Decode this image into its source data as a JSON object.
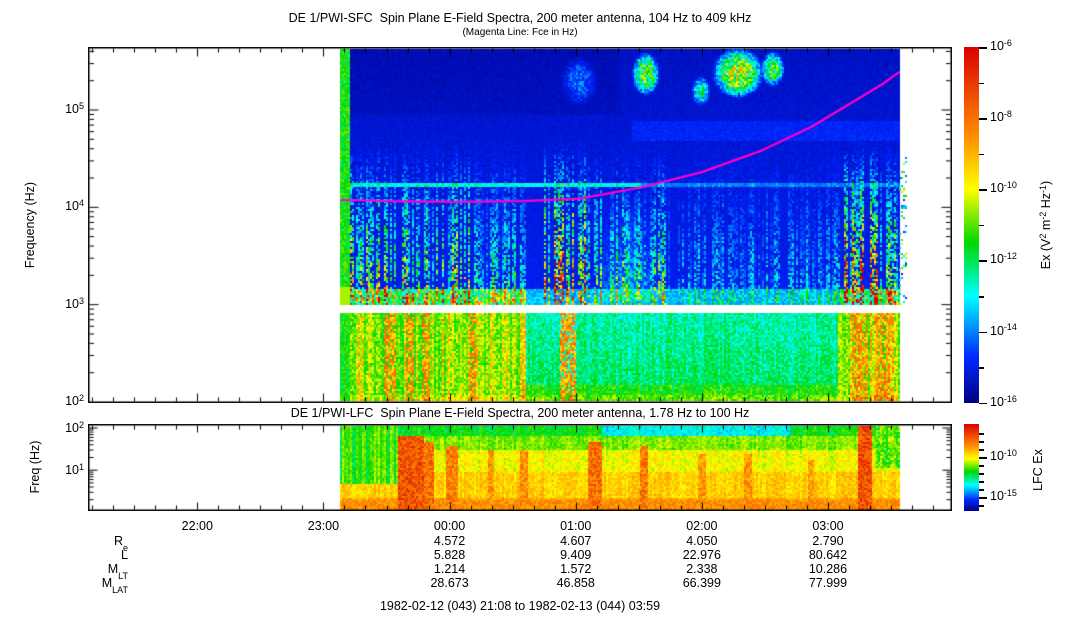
{
  "chart_data": {
    "type": "heatmap",
    "description": "Two time-frequency electric field power spectrograms from the DE-1 Plasma Wave Instrument with electron cyclotron frequency overlay and orbit ephemeris annotations",
    "sfc_panel": {
      "title": "DE 1/PWI-SFC  Spin Plane E-Field Spectra, 200 meter antenna, 104 Hz to 409 kHz",
      "subtitle": "(Magenta Line: Fce in Hz)",
      "ylabel": "Frequency (Hz)",
      "yscale": "log",
      "freq_range_hz": [
        104,
        409000
      ],
      "y_major_tick_exps": [
        5,
        4,
        3,
        2
      ],
      "gap_band_hz": [
        950,
        1250
      ],
      "colorbar_tick_exps": [
        -6,
        -8,
        -10,
        -12,
        -14,
        -16
      ],
      "colorbar_label_parts": [
        [
          "t",
          "Ex (V"
        ],
        [
          "s",
          "2"
        ],
        [
          "t",
          " m"
        ],
        [
          "s",
          "-2"
        ],
        [
          "t",
          " Hz"
        ],
        [
          "s",
          "-1"
        ],
        [
          "t",
          ")"
        ]
      ]
    },
    "lfc_panel": {
      "title": "DE 1/PWI-LFC  Spin Plane E-Field Spectra, 200 meter antenna, 1.78 Hz to 100 Hz",
      "ylabel": "Freq (Hz)",
      "yscale": "log",
      "freq_range_hz": [
        1.78,
        100
      ],
      "y_major_tick_exps": [
        2,
        1
      ],
      "colorbar_tick_exps": [
        -10,
        -15
      ],
      "colorbar_label": "LFC Ex"
    },
    "time_axis": {
      "start_label": "1982-02-12 (043) 21:08",
      "end_label": "1982-02-13 (044) 03:59",
      "full_range_label": "1982-02-12 (043) 21:08 to 1982-02-13 (044) 03:59",
      "tick_labels": [
        "22:00",
        "23:00",
        "00:00",
        "01:00",
        "02:00",
        "03:00"
      ],
      "minor_tick_minutes": 10,
      "data_start": "23:08",
      "data_end": "03:34"
    },
    "fce_line_hz": [
      [
        "23:08",
        11900
      ],
      [
        "23:37",
        11500
      ],
      [
        "00:05",
        11400
      ],
      [
        "00:34",
        11600
      ],
      [
        "01:02",
        12300
      ],
      [
        "01:31",
        16000
      ],
      [
        "02:00",
        23000
      ],
      [
        "02:28",
        38000
      ],
      [
        "02:52",
        67000
      ],
      [
        "03:11",
        118000
      ],
      [
        "03:26",
        185000
      ],
      [
        "03:34",
        246000
      ]
    ],
    "ephemeris": {
      "columns": [
        "00:00",
        "01:00",
        "02:00",
        "03:00"
      ],
      "rows": [
        {
          "main": "R",
          "sub": "e",
          "values": [
            "4.572",
            "4.607",
            "4.050",
            "2.790"
          ]
        },
        {
          "main": "L",
          "sub": "",
          "values": [
            "5.828",
            "9.409",
            "22.976",
            "80.642"
          ]
        },
        {
          "main": "M",
          "sub": "LT",
          "values": [
            "1.214",
            "1.572",
            "2.338",
            "10.286"
          ]
        },
        {
          "main": "M",
          "sub": "LAT",
          "values": [
            "28.673",
            "46.858",
            "66.399",
            "77.999"
          ]
        }
      ]
    },
    "colors": {
      "fce_line": "#ff00cd",
      "axis": "#000000",
      "background": "#ffffff"
    },
    "render": {
      "sfc_streak_clusters": [
        [
          340,
          470,
          0.55
        ],
        [
          470,
          525,
          0.28
        ],
        [
          540,
          585,
          0.8
        ],
        [
          585,
          665,
          0.35
        ],
        [
          665,
          840,
          0.16
        ],
        [
          840,
          880,
          0.8
        ],
        [
          880,
          899,
          0.45
        ]
      ],
      "sfc_top_blobs": [
        [
          645,
          73,
          14,
          22,
          0.5
        ],
        [
          737,
          72,
          26,
          26,
          0.55
        ],
        [
          772,
          68,
          12,
          18,
          0.45
        ],
        [
          578,
          80,
          18,
          25,
          0.15
        ],
        [
          700,
          90,
          10,
          15,
          0.3
        ]
      ],
      "sfc_red_cols": [
        [
          383,
          396
        ],
        [
          406,
          414
        ],
        [
          422,
          430
        ],
        [
          470,
          476
        ],
        [
          560,
          576
        ],
        [
          852,
          868
        ],
        [
          876,
          890
        ]
      ],
      "lfc_red_cols": [
        [
          397,
          423,
          0.12,
          0.85
        ],
        [
          424,
          433,
          0.2,
          0.8
        ],
        [
          446,
          457,
          0.25,
          0.78
        ],
        [
          488,
          494,
          0.3,
          0.74
        ],
        [
          520,
          527,
          0.3,
          0.75
        ],
        [
          588,
          601,
          0.2,
          0.8
        ],
        [
          640,
          648,
          0.25,
          0.78
        ],
        [
          698,
          705,
          0.35,
          0.74
        ],
        [
          744,
          751,
          0.35,
          0.74
        ],
        [
          808,
          813,
          0.4,
          0.72
        ],
        [
          858,
          872,
          0.02,
          0.86
        ]
      ]
    }
  }
}
